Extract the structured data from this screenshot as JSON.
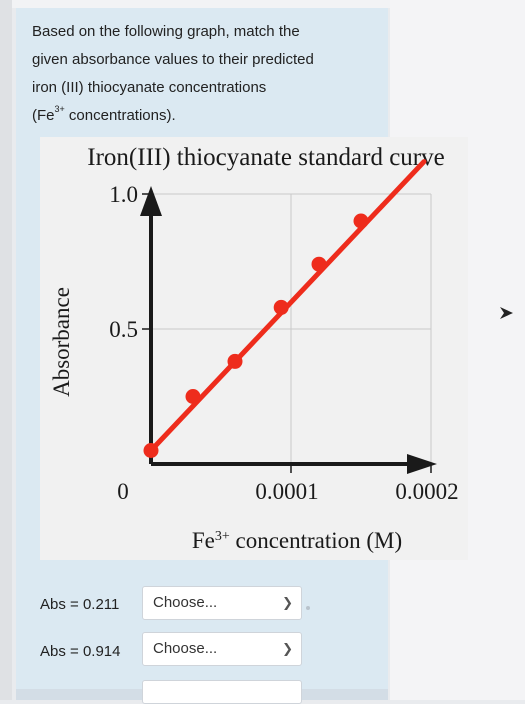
{
  "question": {
    "line1": "Based on the following graph, match the",
    "line2": "given absorbance values to their predicted",
    "line3": "iron (III) thiocyanate concentrations",
    "line4_prefix": "(Fe",
    "line4_sup": "3+",
    "line4_suffix": " concentrations)."
  },
  "colors": {
    "panel": "#dbe9f2",
    "line": "#ee2c1c",
    "axis": "#1a1a1a"
  },
  "chart_data": {
    "type": "scatter",
    "title": "Iron(III) thiocyanate standard curve",
    "xlabel_prefix": "Fe",
    "xlabel_sup": "3+",
    "xlabel_suffix": " concentration (M)",
    "ylabel": "Absorbance",
    "xlim": [
      0,
      0.0002
    ],
    "ylim": [
      0,
      1.0
    ],
    "x_ticks": [
      "0",
      "0.0001",
      "0.0002"
    ],
    "y_ticks": [
      "0.5",
      "1.0"
    ],
    "grid": true,
    "series": [
      {
        "points": [
          {
            "x": 0,
            "y": 0.05
          },
          {
            "x": 3e-05,
            "y": 0.25
          },
          {
            "x": 6e-05,
            "y": 0.38
          },
          {
            "x": 9.3e-05,
            "y": 0.58
          },
          {
            "x": 0.00012,
            "y": 0.74
          },
          {
            "x": 0.00015,
            "y": 0.9
          }
        ],
        "fit_line": {
          "x0": 0,
          "y0": 0.05,
          "x1": 0.000195,
          "y1": 1.12
        }
      }
    ]
  },
  "matching": {
    "rows": [
      {
        "label": "Abs = 0.211",
        "select_value": "Choose..."
      },
      {
        "label": "Abs = 0.914",
        "select_value": "Choose..."
      }
    ]
  }
}
